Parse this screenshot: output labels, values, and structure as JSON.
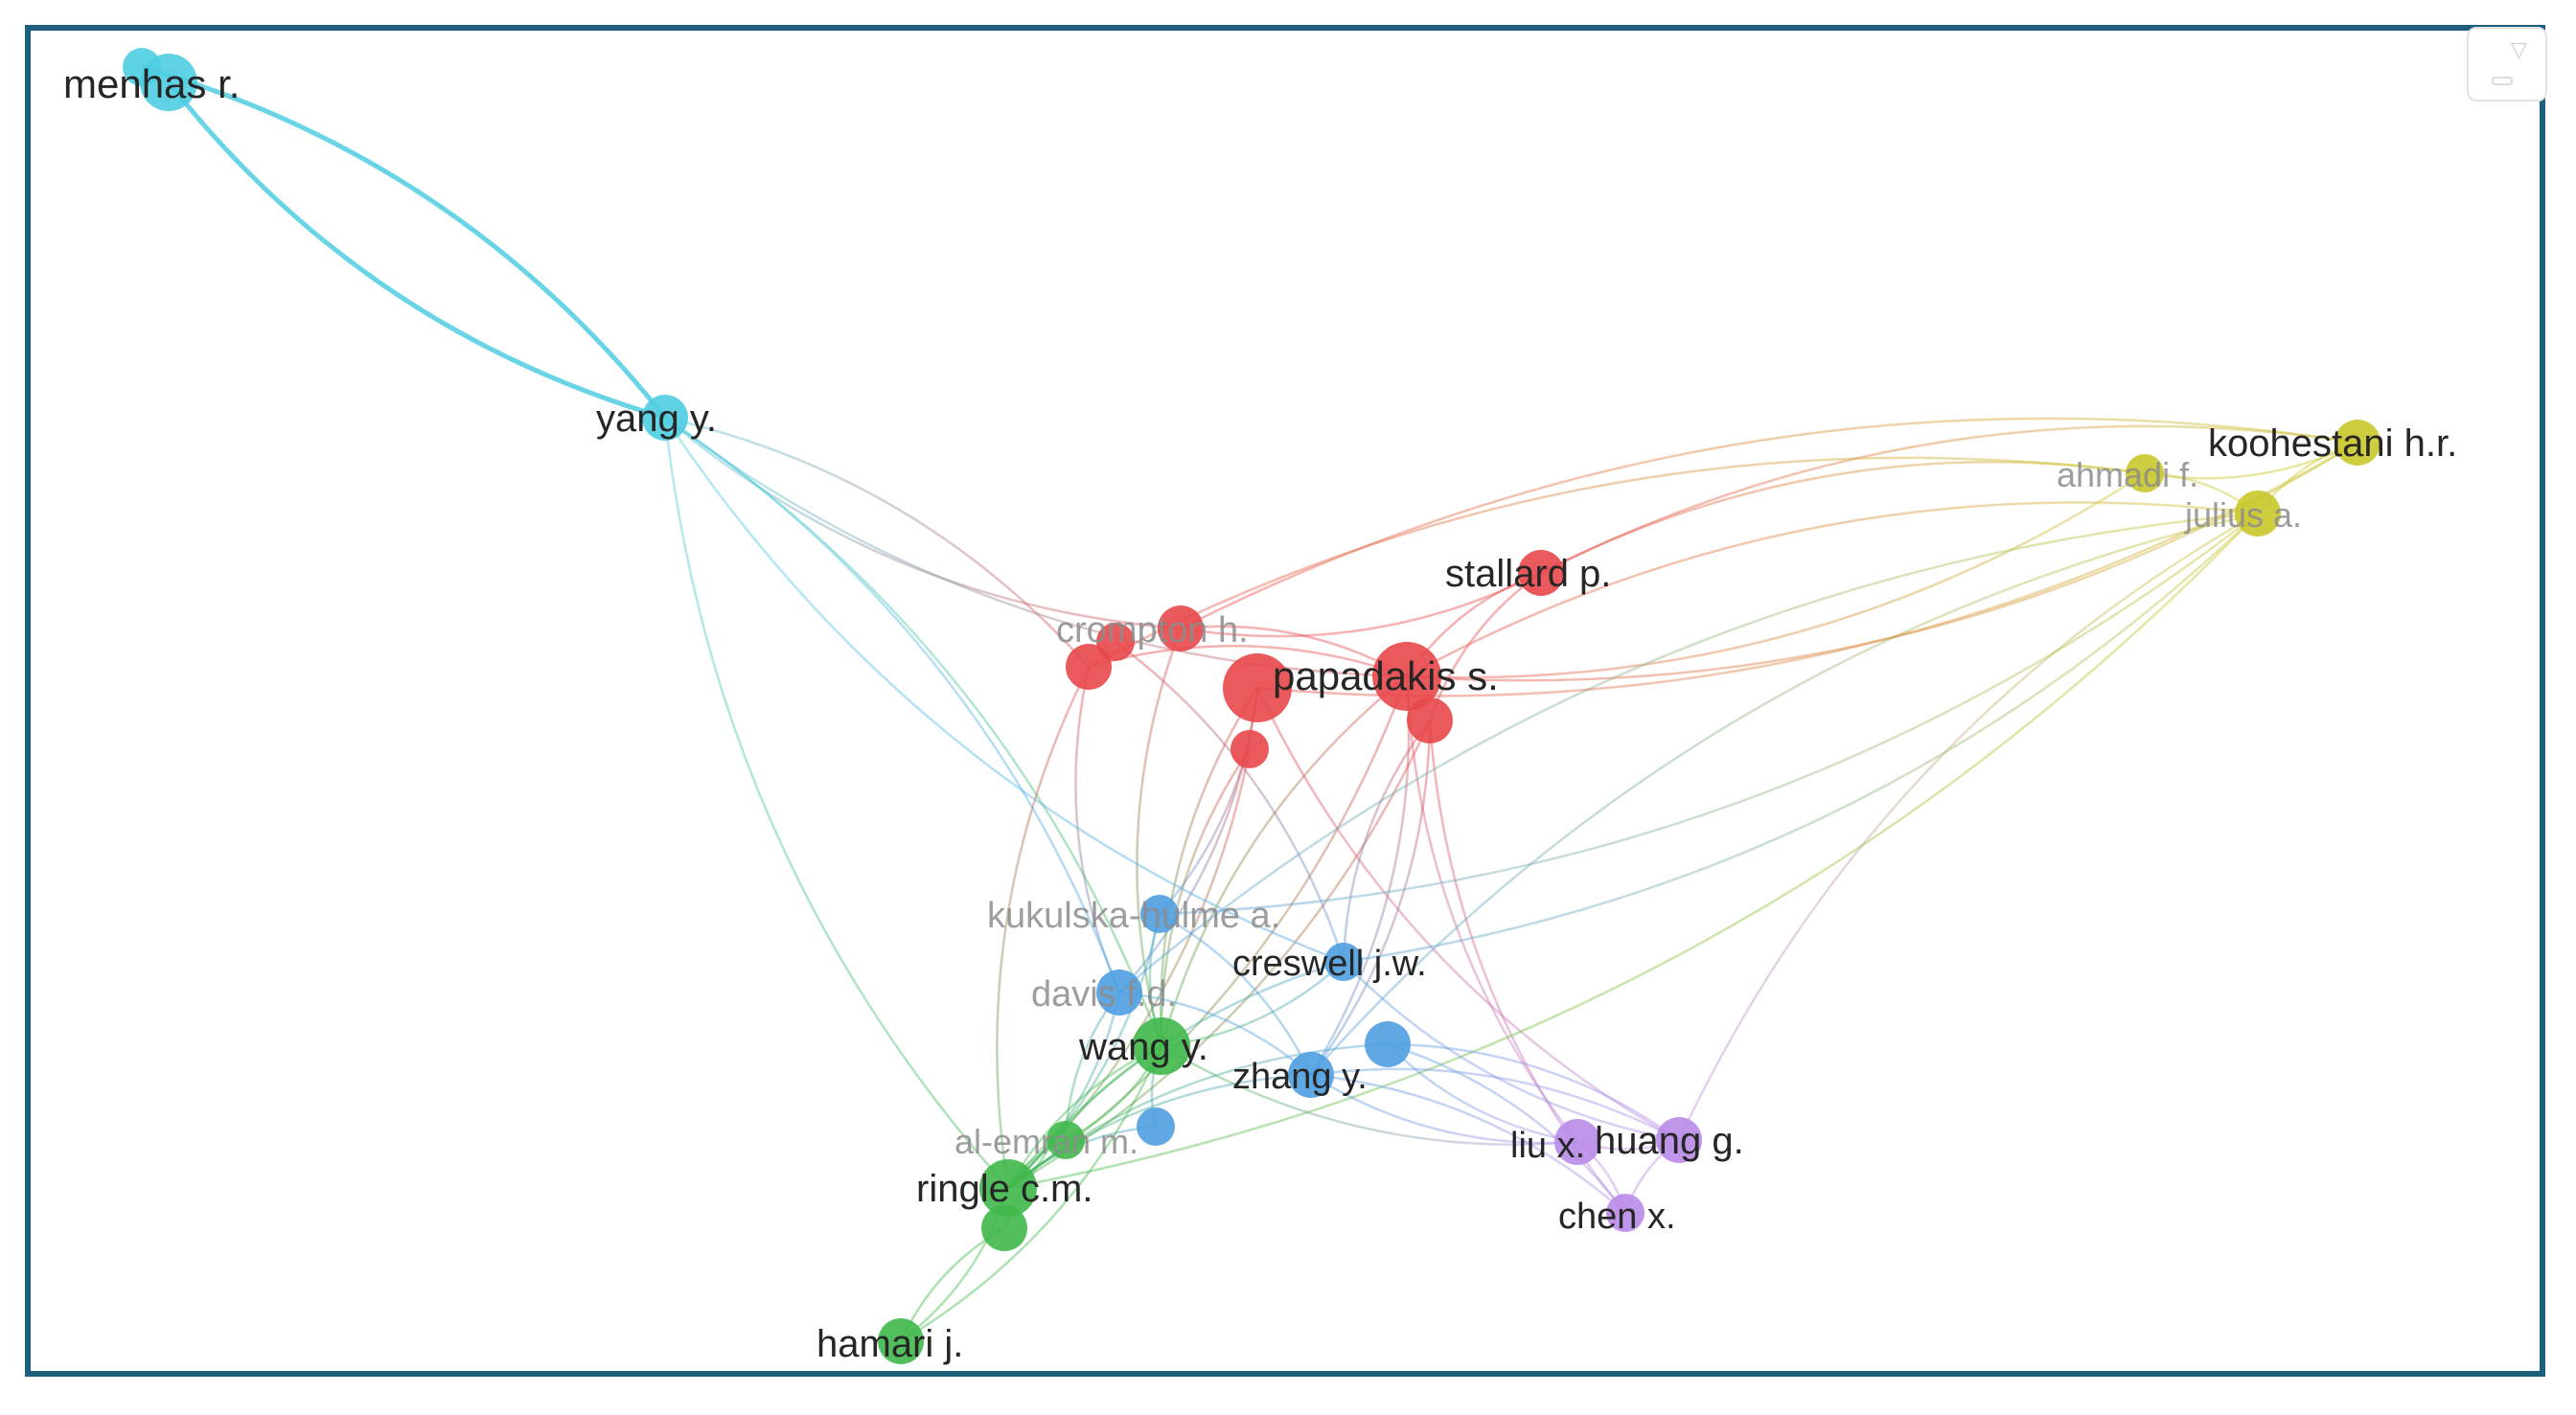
{
  "nodes": [
    {
      "id": "menhas",
      "label": "menhas r.",
      "cluster": "cyan",
      "weight": 4
    },
    {
      "id": "menhas_b",
      "label": "",
      "cluster": "cyan",
      "weight": 2
    },
    {
      "id": "yang",
      "label": "yang y.",
      "cluster": "cyan",
      "weight": 3
    },
    {
      "id": "crompton",
      "label": "crompton h.",
      "cluster": "red",
      "weight": 3,
      "faded": true
    },
    {
      "id": "red_a",
      "label": "",
      "cluster": "red",
      "weight": 3
    },
    {
      "id": "red_b",
      "label": "",
      "cluster": "red",
      "weight": 2
    },
    {
      "id": "papadakis",
      "label": "papadakis s.",
      "cluster": "red",
      "weight": 5
    },
    {
      "id": "red_c",
      "label": "",
      "cluster": "red",
      "weight": 5
    },
    {
      "id": "red_d",
      "label": "",
      "cluster": "red",
      "weight": 3
    },
    {
      "id": "red_e",
      "label": "",
      "cluster": "red",
      "weight": 2
    },
    {
      "id": "stallard",
      "label": "stallard p.",
      "cluster": "red",
      "weight": 3
    },
    {
      "id": "ahmadi",
      "label": "ahmadi f.",
      "cluster": "yellow",
      "weight": 2,
      "faded": true
    },
    {
      "id": "koohestani",
      "label": "koohestani h.r.",
      "cluster": "yellow",
      "weight": 3
    },
    {
      "id": "julius",
      "label": "julius a.",
      "cluster": "yellow",
      "weight": 3,
      "faded": true
    },
    {
      "id": "kukulska",
      "label": "kukulska-hulme a.",
      "cluster": "blue",
      "weight": 2,
      "faded": true
    },
    {
      "id": "creswell",
      "label": "creswell j.w.",
      "cluster": "blue",
      "weight": 2
    },
    {
      "id": "davis",
      "label": "davis f.d.",
      "cluster": "blue",
      "weight": 3,
      "faded": true
    },
    {
      "id": "blue_a",
      "label": "",
      "cluster": "blue",
      "weight": 3
    },
    {
      "id": "zhang",
      "label": "zhang y.",
      "cluster": "blue",
      "weight": 3
    },
    {
      "id": "blue_b",
      "label": "",
      "cluster": "blue",
      "weight": 2
    },
    {
      "id": "wang",
      "label": "wang y.",
      "cluster": "green",
      "weight": 4
    },
    {
      "id": "alemran",
      "label": "al-emran m.",
      "cluster": "green",
      "weight": 2,
      "faded": true
    },
    {
      "id": "ringle",
      "label": "ringle c.m.",
      "cluster": "green",
      "weight": 4
    },
    {
      "id": "green_a",
      "label": "",
      "cluster": "green",
      "weight": 3
    },
    {
      "id": "hamari",
      "label": "hamari j.",
      "cluster": "green",
      "weight": 3
    },
    {
      "id": "liu",
      "label": "liu x.",
      "cluster": "purple",
      "weight": 3
    },
    {
      "id": "huang",
      "label": "huang g.",
      "cluster": "purple",
      "weight": 3
    },
    {
      "id": "chen",
      "label": "chen x.",
      "cluster": "purple",
      "weight": 2
    }
  ],
  "cluster_colors": {
    "cyan": "#4ecde0",
    "red": "#e8474a",
    "yellow": "#c9c72a",
    "blue": "#4f9fe0",
    "green": "#3fb84a",
    "purple": "#b98be8"
  },
  "links": [
    [
      "menhas",
      "yang"
    ],
    [
      "menhas_b",
      "yang"
    ],
    [
      "yang",
      "crompton"
    ],
    [
      "yang",
      "red_a"
    ],
    [
      "yang",
      "papadakis"
    ],
    [
      "yang",
      "wang"
    ],
    [
      "yang",
      "ringle"
    ],
    [
      "crompton",
      "papadakis"
    ],
    [
      "crompton",
      "stallard"
    ],
    [
      "crompton",
      "koohestani"
    ],
    [
      "crompton",
      "wang"
    ],
    [
      "red_a",
      "papadakis"
    ],
    [
      "red_a",
      "ringle"
    ],
    [
      "red_b",
      "creswell"
    ],
    [
      "red_a",
      "davis"
    ],
    [
      "papadakis",
      "stallard"
    ],
    [
      "papadakis",
      "koohestani"
    ],
    [
      "papadakis",
      "julius"
    ],
    [
      "papadakis",
      "ahmadi"
    ],
    [
      "papadakis",
      "ringle"
    ],
    [
      "papadakis",
      "wang"
    ],
    [
      "papadakis",
      "zhang"
    ],
    [
      "papadakis",
      "liu"
    ],
    [
      "red_c",
      "davis"
    ],
    [
      "red_c",
      "wang"
    ],
    [
      "red_c",
      "kukulska"
    ],
    [
      "red_c",
      "huang"
    ],
    [
      "red_d",
      "ringle"
    ],
    [
      "red_d",
      "creswell"
    ],
    [
      "red_d",
      "zhang"
    ],
    [
      "red_d",
      "chen"
    ],
    [
      "red_e",
      "ringle"
    ],
    [
      "red_e",
      "wang"
    ],
    [
      "stallard",
      "koohestani"
    ],
    [
      "stallard",
      "red_d"
    ],
    [
      "stallard",
      "ahmadi"
    ],
    [
      "ahmadi",
      "koohestani"
    ],
    [
      "ahmadi",
      "julius"
    ],
    [
      "koohestani",
      "julius"
    ],
    [
      "julius",
      "ringle"
    ],
    [
      "julius",
      "zhang"
    ],
    [
      "julius",
      "creswell"
    ],
    [
      "julius",
      "huang"
    ],
    [
      "julius",
      "kukulska"
    ],
    [
      "julius",
      "davis"
    ],
    [
      "koohestani",
      "red_c"
    ],
    [
      "ahmadi",
      "red_a"
    ],
    [
      "kukulska",
      "ringle"
    ],
    [
      "kukulska",
      "wang"
    ],
    [
      "kukulska",
      "zhang"
    ],
    [
      "creswell",
      "ringle"
    ],
    [
      "creswell",
      "wang"
    ],
    [
      "creswell",
      "huang"
    ],
    [
      "davis",
      "ringle"
    ],
    [
      "davis",
      "alemran"
    ],
    [
      "davis",
      "zhang"
    ],
    [
      "blue_a",
      "liu"
    ],
    [
      "blue_a",
      "chen"
    ],
    [
      "blue_a",
      "ringle"
    ],
    [
      "blue_a",
      "huang"
    ],
    [
      "zhang",
      "liu"
    ],
    [
      "zhang",
      "chen"
    ],
    [
      "zhang",
      "ringle"
    ],
    [
      "zhang",
      "huang"
    ],
    [
      "blue_b",
      "ringle"
    ],
    [
      "blue_b",
      "wang"
    ],
    [
      "wang",
      "ringle"
    ],
    [
      "wang",
      "alemran"
    ],
    [
      "wang",
      "liu"
    ],
    [
      "wang",
      "hamari"
    ],
    [
      "alemran",
      "ringle"
    ],
    [
      "ringle",
      "hamari"
    ],
    [
      "green_a",
      "hamari"
    ],
    [
      "green_a",
      "wang"
    ],
    [
      "liu",
      "huang"
    ],
    [
      "liu",
      "chen"
    ],
    [
      "huang",
      "chen"
    ],
    [
      "yang",
      "davis"
    ],
    [
      "yang",
      "creswell"
    ]
  ],
  "controls": {
    "zoom_icon": "triangle-down-icon"
  }
}
